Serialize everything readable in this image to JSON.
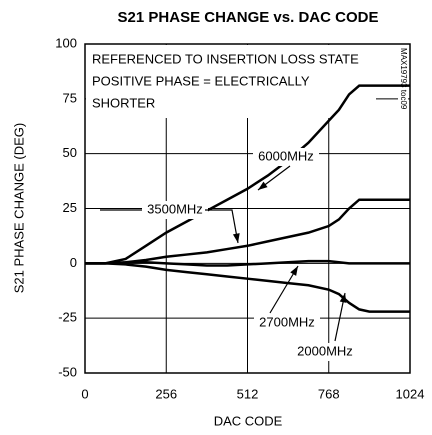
{
  "chart_data": {
    "type": "line",
    "title": "S21 PHASE CHANGE vs. DAC CODE",
    "xlabel": "DAC CODE",
    "ylabel": "S21 PHASE CHANGE (DEG)",
    "annotations": [
      "REFERENCED TO INSERTION LOSS STATE",
      "POSITIVE PHASE = ELECTRICALLY",
      "SHORTER"
    ],
    "figure_id": "MAX19793 toc09",
    "x": [
      0,
      64,
      128,
      192,
      256,
      320,
      384,
      448,
      512,
      576,
      640,
      704,
      768,
      800,
      832,
      864,
      896,
      960,
      1024
    ],
    "series": [
      {
        "name": "6000MHz",
        "color": "#000000",
        "values": [
          0,
          0,
          2,
          8,
          14,
          19,
          24,
          29,
          34,
          40,
          47,
          55,
          65,
          70,
          77,
          81,
          81,
          81,
          81
        ]
      },
      {
        "name": "3500MHz",
        "color": "#000000",
        "values": [
          0,
          0,
          0.5,
          1.5,
          3,
          4,
          5,
          6.5,
          8,
          10,
          12,
          14,
          17,
          20,
          25,
          29,
          29,
          29,
          29
        ]
      },
      {
        "name": "2700MHz",
        "color": "#000000",
        "values": [
          0,
          0,
          0.3,
          0.5,
          0,
          -0.5,
          -1,
          -1,
          -0.5,
          0,
          0.5,
          1,
          1,
          0.5,
          0,
          0,
          0,
          0,
          0
        ]
      },
      {
        "name": "2000MHz",
        "color": "#000000",
        "values": [
          0,
          0,
          -0.5,
          -1.5,
          -3,
          -4,
          -5,
          -6,
          -7,
          -8,
          -9,
          -10,
          -12,
          -14,
          -18,
          -21,
          -22,
          -22,
          -22
        ]
      }
    ],
    "xlim": [
      0,
      1024
    ],
    "xticks": [
      0,
      256,
      512,
      768,
      1024
    ],
    "ylim": [
      -50,
      100
    ],
    "yticks": [
      -50,
      -25,
      0,
      25,
      50,
      75,
      100
    ],
    "grid": true
  }
}
